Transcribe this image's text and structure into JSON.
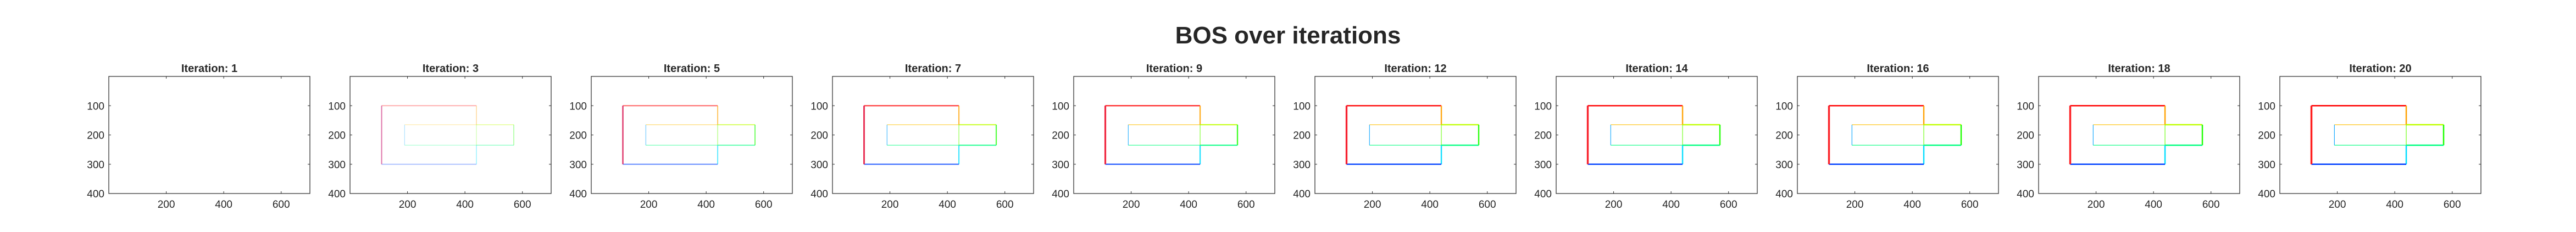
{
  "figure_title": "BOS over iterations",
  "chart_data": {
    "type": "line",
    "title": "BOS over iterations",
    "xlim": [
      0,
      700
    ],
    "ylim": [
      400,
      0
    ],
    "x_ticks": [
      200,
      400,
      600
    ],
    "y_ticks": [
      100,
      200,
      300,
      400
    ],
    "grid": false,
    "shape_outline": [
      [
        110,
        100
      ],
      [
        440,
        100
      ],
      [
        440,
        165
      ],
      [
        570,
        165
      ],
      [
        570,
        235
      ],
      [
        440,
        235
      ],
      [
        440,
        300
      ],
      [
        110,
        300
      ],
      [
        110,
        100
      ]
    ],
    "inner_outline": [
      [
        190,
        165
      ],
      [
        440,
        165
      ],
      [
        440,
        235
      ],
      [
        190,
        235
      ],
      [
        190,
        165
      ]
    ],
    "panels": [
      {
        "title": "Iteration: 1",
        "iteration": 1,
        "opacity": 0.0
      },
      {
        "title": "Iteration: 3",
        "iteration": 3,
        "opacity": 0.35
      },
      {
        "title": "Iteration: 5",
        "iteration": 5,
        "opacity": 0.6
      },
      {
        "title": "Iteration: 7",
        "iteration": 7,
        "opacity": 0.75
      },
      {
        "title": "Iteration: 9",
        "iteration": 9,
        "opacity": 0.85
      },
      {
        "title": "Iteration: 12",
        "iteration": 12,
        "opacity": 0.92
      },
      {
        "title": "Iteration: 14",
        "iteration": 14,
        "opacity": 0.95
      },
      {
        "title": "Iteration: 16",
        "iteration": 16,
        "opacity": 0.97
      },
      {
        "title": "Iteration: 18",
        "iteration": 18,
        "opacity": 0.98
      },
      {
        "title": "Iteration: 20",
        "iteration": 20,
        "opacity": 1.0
      }
    ]
  }
}
